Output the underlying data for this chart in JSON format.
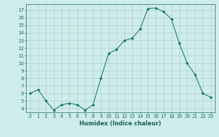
{
  "x": [
    0,
    1,
    2,
    3,
    4,
    5,
    6,
    7,
    8,
    9,
    10,
    11,
    12,
    13,
    14,
    15,
    16,
    17,
    18,
    19,
    20,
    21,
    22,
    23
  ],
  "y": [
    6.0,
    6.5,
    5.0,
    3.8,
    4.5,
    4.7,
    4.5,
    3.8,
    4.5,
    8.0,
    11.3,
    11.8,
    13.0,
    13.3,
    14.5,
    17.2,
    17.3,
    16.8,
    15.8,
    12.6,
    10.0,
    8.5,
    6.0,
    5.5
  ],
  "line_color": "#1a7a6e",
  "marker": "D",
  "marker_size": 2.0,
  "bg_color": "#ceecea",
  "grid_color": "#b0ceca",
  "tick_color": "#1a6a60",
  "label_color": "#1a5f5a",
  "xlabel": "Humidex (Indice chaleur)",
  "ylim": [
    3.5,
    17.8
  ],
  "yticks": [
    4,
    5,
    6,
    7,
    8,
    9,
    10,
    11,
    12,
    13,
    14,
    15,
    16,
    17
  ],
  "xticks": [
    0,
    1,
    2,
    3,
    4,
    5,
    6,
    7,
    8,
    9,
    10,
    11,
    12,
    13,
    14,
    15,
    16,
    17,
    18,
    19,
    20,
    21,
    22,
    23
  ],
  "axis_fontsize": 5.5,
  "tick_fontsize": 5.0,
  "xlabel_fontsize": 6.0
}
